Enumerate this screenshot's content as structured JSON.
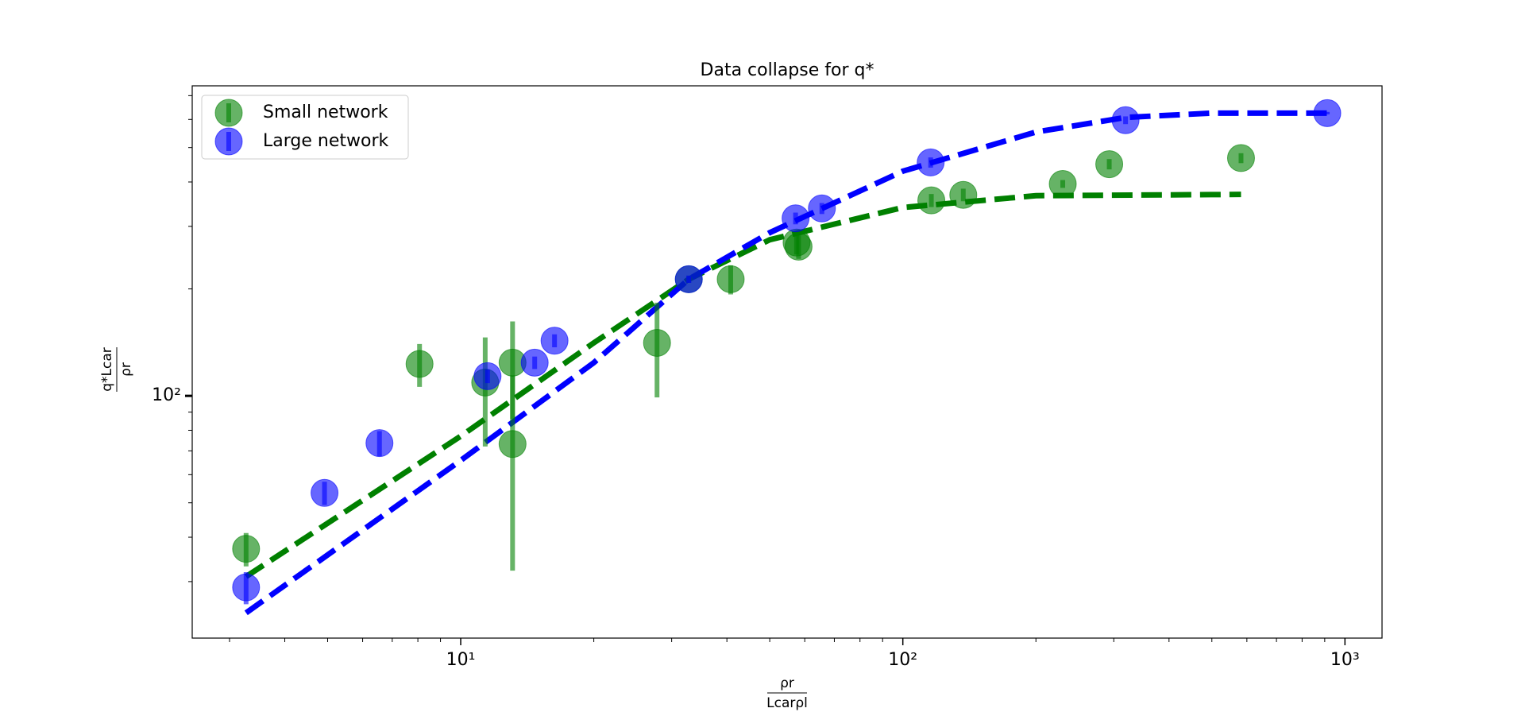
{
  "chart_data": {
    "type": "scatter",
    "title": "Data collapse for q*",
    "xlabel": {
      "numerator": "ρr",
      "denominator": "Lcarρl"
    },
    "ylabel": {
      "numerator": "q*Lcar",
      "denominator": "ρr"
    },
    "xscale": "log",
    "yscale": "log",
    "xlim": [
      2.47,
      1213
    ],
    "ylim": [
      20.8,
      746
    ],
    "xticks": [
      {
        "value": 10,
        "label": "10¹"
      },
      {
        "value": 100,
        "label": "10²"
      },
      {
        "value": 1000,
        "label": "10³"
      }
    ],
    "yticks": [
      {
        "value": 100,
        "label": "10²"
      }
    ],
    "legend": "upper left",
    "series": [
      {
        "name": "Small network",
        "color": "#008000",
        "x": [
          3.27,
          8.07,
          11.36,
          13.1,
          13.1,
          27.8,
          32.8,
          40.8,
          58.1,
          57.5,
          116,
          137,
          230,
          293,
          582
        ],
        "values": [
          37.1,
          123,
          109,
          124,
          73.2,
          141,
          213,
          213,
          263,
          270,
          355,
          368,
          395,
          449,
          467
        ],
        "errors": [
          4,
          17,
          37,
          38,
          41,
          42,
          5,
          20,
          20,
          20,
          15,
          15,
          10,
          15,
          15
        ]
      },
      {
        "name": "Large network",
        "color": "#0000ff",
        "x": [
          3.27,
          4.92,
          6.55,
          11.5,
          14.7,
          16.3,
          32.8,
          57.2,
          65.6,
          115.6,
          319,
          912
        ],
        "values": [
          28.9,
          53.3,
          73.6,
          113.6,
          124,
          143,
          213,
          316,
          337,
          454,
          597,
          625
        ],
        "errors": [
          3,
          4,
          6,
          5,
          5,
          6,
          5,
          12,
          12,
          15,
          15,
          5
        ]
      }
    ],
    "fits": [
      {
        "color": "#008000",
        "x": [
          3.27,
          10,
          20,
          32.8,
          50,
          100,
          200,
          582
        ],
        "values": [
          31,
          77,
          141,
          213,
          275,
          339,
          366,
          369
        ]
      },
      {
        "color": "#0000ff",
        "x": [
          3.27,
          10,
          20,
          32.8,
          50,
          100,
          200,
          320,
          500,
          912
        ],
        "values": [
          24.5,
          65.8,
          124,
          213,
          288,
          429,
          553,
          608,
          625,
          625
        ]
      }
    ]
  }
}
